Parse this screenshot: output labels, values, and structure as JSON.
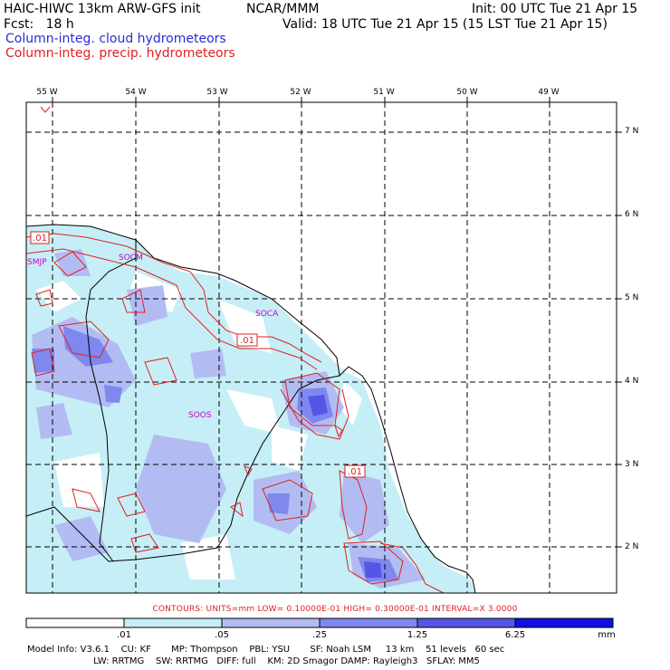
{
  "header": {
    "model": "HAIC-HIWC 13km ARW-GFS init",
    "org": "NCAR/MMM",
    "init": "Init: 00 UTC Tue 21 Apr 15",
    "fcst": "Fcst:   18 h",
    "valid": "Valid: 18 UTC Tue 21 Apr 15 (15 LST Tue 21 Apr 15)",
    "field1": "Column-integ. cloud hydrometeors",
    "field2": "Column-integ. precip. hydrometeors"
  },
  "colors": {
    "cloud_text": "#2b2bd6",
    "precip_text": "#e02020",
    "shade_1": "#c6eef6",
    "shade_2": "#b2bcf2",
    "shade_3": "#7f88ee",
    "shade_4": "#5656e6",
    "shade_5": "#1010e0"
  },
  "lon_labels": [
    "55 W",
    "54 W",
    "53 W",
    "52 W",
    "51 W",
    "50 W",
    "49 W"
  ],
  "lat_labels": [
    "7 N",
    "6 N",
    "5 N",
    "4 N",
    "3 N",
    "2 N"
  ],
  "place_labels": [
    "SMJP",
    "SOCM",
    "SOCA",
    "SOOS"
  ],
  "contour_labels": [
    ".01",
    ".01",
    ".01"
  ],
  "contours_text": "CONTOURS:  UNITS=mm  LOW= 0.10000E-01  HIGH= 0.30000E-01  INTERVAL=X  3.0000",
  "colorbar": {
    "ticks": [
      ".01",
      ".05",
      ".25",
      "1.25",
      "6.25"
    ],
    "unit": "mm"
  },
  "model_info": {
    "line1": "Model Info: V3.6.1    CU: KF       MP: Thompson    PBL: YSU       SF: Noah LSM     13 km    51 levels   60 sec",
    "line2": "                       LW: RRTMG    SW: RRTMG   DIFF: full    KM: 2D Smagor DAMP: Rayleigh3   SFLAY: MM5"
  }
}
